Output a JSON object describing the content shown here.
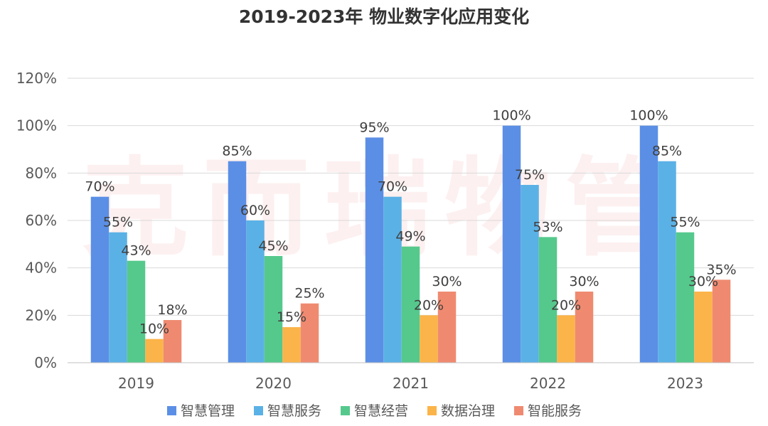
{
  "watermark": "克而瑞物管",
  "chart_data": {
    "type": "bar",
    "title": "2019-2023年 物业数字化应用变化",
    "xlabel": "",
    "ylabel": "",
    "ylim": [
      0,
      120
    ],
    "yticks": [
      "0%",
      "20%",
      "40%",
      "60%",
      "80%",
      "100%",
      "120%"
    ],
    "grid": true,
    "legend_position": "bottom",
    "categories": [
      "2019",
      "2020",
      "2021",
      "2022",
      "2023"
    ],
    "series": [
      {
        "name": "智慧管理",
        "color": "#5b8fe6",
        "values": [
          70,
          85,
          95,
          100,
          100
        ],
        "labels": [
          "70%",
          "85%",
          "95%",
          "100%",
          "100%"
        ]
      },
      {
        "name": "智慧服务",
        "color": "#5ab1e6",
        "values": [
          55,
          60,
          70,
          75,
          85
        ],
        "labels": [
          "55%",
          "60%",
          "70%",
          "75%",
          "85%"
        ]
      },
      {
        "name": "智慧经营",
        "color": "#55c98c",
        "values": [
          43,
          45,
          49,
          53,
          55
        ],
        "labels": [
          "43%",
          "45%",
          "49%",
          "53%",
          "55%"
        ]
      },
      {
        "name": "数据治理",
        "color": "#fbb449",
        "values": [
          10,
          15,
          20,
          20,
          30
        ],
        "labels": [
          "10%",
          "15%",
          "20%",
          "20%",
          "30%"
        ]
      },
      {
        "name": "智能服务",
        "color": "#ef8a70",
        "values": [
          18,
          25,
          30,
          30,
          35
        ],
        "labels": [
          "18%",
          "25%",
          "30%",
          "30%",
          "35%"
        ]
      }
    ]
  }
}
